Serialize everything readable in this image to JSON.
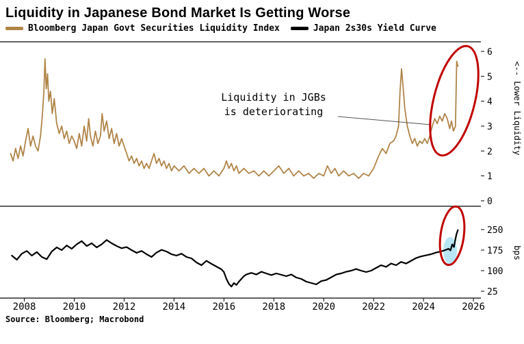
{
  "title": "Liquidity in Japanese Bond Market Is Getting Worse",
  "legend": [
    {
      "label": "Bloomberg Japan Govt Securities Liquidity Index",
      "color": "#b08447"
    },
    {
      "label": "Japan 2s30s Yield Curve",
      "color": "#000000"
    }
  ],
  "annotation": {
    "line1": "Liquidity in JGBs",
    "line2": "is deteriorating"
  },
  "source_note": "Source: Bloomberg; Macrobond",
  "highlight": {
    "circle_color": "#c00000",
    "band_color": "#b8e6f5"
  },
  "x_axis": {
    "range": [
      2007.3,
      2026.3
    ],
    "ticks": [
      2008,
      2010,
      2012,
      2014,
      2016,
      2018,
      2020,
      2022,
      2024,
      2026
    ]
  },
  "chart_data": [
    {
      "type": "line",
      "name": "Bloomberg Japan Govt Securities Liquidity Index",
      "color": "#b08447",
      "stroke_width": 1.8,
      "right_axis_label": "<-- Lower Liquidity",
      "ylim": [
        0,
        6
      ],
      "yticks": [
        0,
        1,
        2,
        3,
        4,
        5,
        6
      ],
      "x": [
        2007.45,
        2007.55,
        2007.65,
        2007.75,
        2007.85,
        2007.95,
        2008.05,
        2008.15,
        2008.25,
        2008.35,
        2008.45,
        2008.55,
        2008.65,
        2008.72,
        2008.78,
        2008.83,
        2008.88,
        2008.93,
        2008.98,
        2009.05,
        2009.12,
        2009.2,
        2009.3,
        2009.4,
        2009.5,
        2009.6,
        2009.7,
        2009.8,
        2009.9,
        2010.0,
        2010.1,
        2010.2,
        2010.3,
        2010.4,
        2010.5,
        2010.58,
        2010.65,
        2010.75,
        2010.85,
        2010.95,
        2011.05,
        2011.12,
        2011.2,
        2011.3,
        2011.4,
        2011.5,
        2011.6,
        2011.7,
        2011.8,
        2011.9,
        2012.0,
        2012.1,
        2012.2,
        2012.3,
        2012.4,
        2012.5,
        2012.6,
        2012.7,
        2012.8,
        2012.9,
        2013.0,
        2013.1,
        2013.2,
        2013.3,
        2013.4,
        2013.5,
        2013.6,
        2013.7,
        2013.8,
        2013.9,
        2014.0,
        2014.2,
        2014.4,
        2014.6,
        2014.8,
        2015.0,
        2015.2,
        2015.4,
        2015.6,
        2015.8,
        2016.0,
        2016.1,
        2016.2,
        2016.3,
        2016.4,
        2016.5,
        2016.6,
        2016.8,
        2017.0,
        2017.2,
        2017.4,
        2017.6,
        2017.8,
        2018.0,
        2018.2,
        2018.4,
        2018.6,
        2018.8,
        2019.0,
        2019.2,
        2019.4,
        2019.6,
        2019.8,
        2020.0,
        2020.15,
        2020.3,
        2020.45,
        2020.6,
        2020.8,
        2021.0,
        2021.2,
        2021.4,
        2021.6,
        2021.8,
        2022.0,
        2022.2,
        2022.35,
        2022.5,
        2022.65,
        2022.8,
        2022.9,
        2023.0,
        2023.06,
        2023.12,
        2023.18,
        2023.25,
        2023.35,
        2023.45,
        2023.55,
        2023.65,
        2023.75,
        2023.85,
        2023.95,
        2024.05,
        2024.15,
        2024.25,
        2024.35,
        2024.45,
        2024.55,
        2024.65,
        2024.75,
        2024.85,
        2024.95,
        2025.05,
        2025.12,
        2025.2,
        2025.28,
        2025.33,
        2025.38
      ],
      "values": [
        1.9,
        1.6,
        2.1,
        1.7,
        2.2,
        1.8,
        2.4,
        2.9,
        2.2,
        2.6,
        2.2,
        2.0,
        2.6,
        3.4,
        4.3,
        5.7,
        4.5,
        5.1,
        4.0,
        4.4,
        3.5,
        4.1,
        3.1,
        2.7,
        3.0,
        2.5,
        2.8,
        2.3,
        2.6,
        2.4,
        2.1,
        2.7,
        2.2,
        3.0,
        2.4,
        3.3,
        2.6,
        2.2,
        2.8,
        2.3,
        2.6,
        3.5,
        2.8,
        3.2,
        2.5,
        2.9,
        2.3,
        2.7,
        2.2,
        2.5,
        2.2,
        1.9,
        1.6,
        1.8,
        1.5,
        1.7,
        1.4,
        1.6,
        1.3,
        1.5,
        1.3,
        1.6,
        1.9,
        1.5,
        1.7,
        1.4,
        1.6,
        1.3,
        1.5,
        1.2,
        1.4,
        1.2,
        1.4,
        1.1,
        1.3,
        1.1,
        1.3,
        1.0,
        1.2,
        1.0,
        1.3,
        1.6,
        1.3,
        1.5,
        1.2,
        1.4,
        1.1,
        1.3,
        1.1,
        1.2,
        1.0,
        1.2,
        1.0,
        1.2,
        1.4,
        1.1,
        1.3,
        1.0,
        1.2,
        1.0,
        1.1,
        0.9,
        1.1,
        1.0,
        1.4,
        1.1,
        1.3,
        1.0,
        1.2,
        1.0,
        1.1,
        0.9,
        1.1,
        1.0,
        1.3,
        1.8,
        2.1,
        1.9,
        2.3,
        2.4,
        2.6,
        3.0,
        4.4,
        5.3,
        4.6,
        3.7,
        3.0,
        2.6,
        2.3,
        2.5,
        2.2,
        2.4,
        2.3,
        2.5,
        2.3,
        2.6,
        3.0,
        3.3,
        3.1,
        3.4,
        3.2,
        3.5,
        3.3,
        2.9,
        3.2,
        2.8,
        3.0,
        5.6,
        5.4
      ]
    },
    {
      "type": "line",
      "name": "Japan 2s30s Yield Curve",
      "color": "#000000",
      "stroke_width": 2.2,
      "right_axis_label": "bps",
      "ylim": [
        0,
        330
      ],
      "yticks": [
        25,
        100,
        175,
        250
      ],
      "x": [
        2007.5,
        2007.7,
        2007.9,
        2008.1,
        2008.3,
        2008.5,
        2008.7,
        2008.9,
        2009.1,
        2009.3,
        2009.5,
        2009.7,
        2009.9,
        2010.1,
        2010.3,
        2010.5,
        2010.7,
        2010.9,
        2011.1,
        2011.3,
        2011.5,
        2011.7,
        2011.9,
        2012.1,
        2012.3,
        2012.5,
        2012.7,
        2012.9,
        2013.1,
        2013.3,
        2013.5,
        2013.7,
        2013.9,
        2014.1,
        2014.3,
        2014.5,
        2014.7,
        2014.9,
        2015.1,
        2015.3,
        2015.5,
        2015.7,
        2015.9,
        2016.0,
        2016.1,
        2016.2,
        2016.3,
        2016.4,
        2016.5,
        2016.6,
        2016.7,
        2016.8,
        2016.9,
        2017.1,
        2017.3,
        2017.5,
        2017.7,
        2017.9,
        2018.1,
        2018.3,
        2018.5,
        2018.7,
        2018.9,
        2019.1,
        2019.3,
        2019.5,
        2019.7,
        2019.9,
        2020.1,
        2020.3,
        2020.5,
        2020.7,
        2020.9,
        2021.1,
        2021.3,
        2021.5,
        2021.7,
        2021.9,
        2022.1,
        2022.3,
        2022.5,
        2022.7,
        2022.9,
        2023.1,
        2023.3,
        2023.5,
        2023.7,
        2023.9,
        2024.1,
        2024.3,
        2024.5,
        2024.7,
        2024.9,
        2025.0,
        2025.08,
        2025.15,
        2025.22,
        2025.28,
        2025.33,
        2025.38
      ],
      "values": [
        155,
        140,
        162,
        172,
        155,
        168,
        150,
        142,
        170,
        185,
        175,
        192,
        180,
        196,
        208,
        190,
        200,
        185,
        196,
        212,
        200,
        190,
        182,
        186,
        175,
        165,
        172,
        160,
        150,
        166,
        176,
        170,
        160,
        155,
        162,
        150,
        145,
        130,
        120,
        136,
        125,
        115,
        105,
        95,
        70,
        52,
        42,
        55,
        48,
        60,
        70,
        80,
        86,
        92,
        86,
        96,
        90,
        84,
        90,
        85,
        80,
        86,
        75,
        70,
        60,
        55,
        50,
        62,
        66,
        76,
        86,
        90,
        96,
        100,
        106,
        100,
        95,
        100,
        110,
        120,
        114,
        126,
        120,
        132,
        126,
        136,
        146,
        152,
        156,
        160,
        166,
        170,
        176,
        180,
        174,
        196,
        186,
        216,
        236,
        248
      ]
    }
  ]
}
